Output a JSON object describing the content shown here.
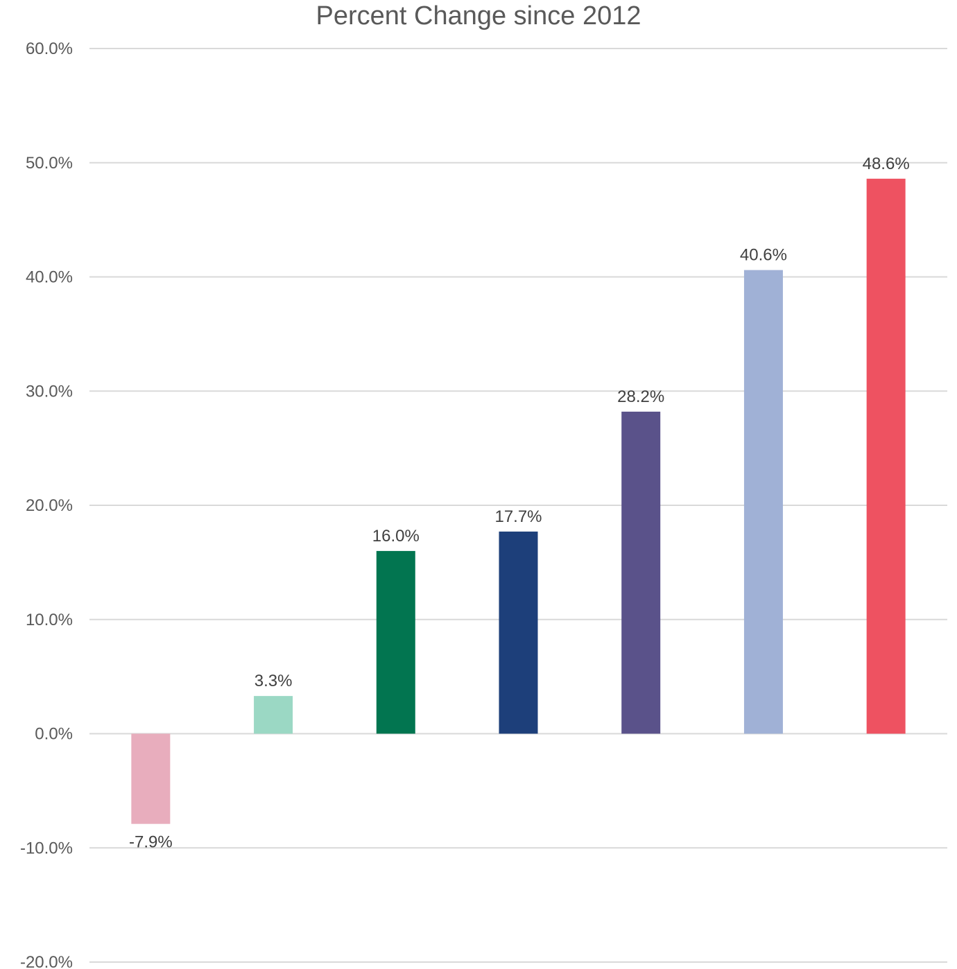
{
  "chart_data": {
    "type": "bar",
    "title": "Percent Change since 2012",
    "xlabel": "",
    "ylabel": "",
    "ylim": [
      -20,
      60
    ],
    "yticks": [
      60,
      50,
      40,
      30,
      20,
      10,
      0,
      -10,
      -20
    ],
    "ytick_labels": [
      "60.0%",
      "50.0%",
      "40.0%",
      "30.0%",
      "20.0%",
      "10.0%",
      "0.0%",
      "-10.0%",
      "-20.0%"
    ],
    "grid": true,
    "legend": "none",
    "values": [
      -7.9,
      3.3,
      16.0,
      17.7,
      28.2,
      40.6,
      48.6
    ],
    "data_labels": [
      "-7.9%",
      "3.3%",
      "16.0%",
      "17.7%",
      "28.2%",
      "40.6%",
      "48.6%"
    ],
    "colors": [
      "#e8adbd",
      "#9bd8c4",
      "#027550",
      "#1d3f7a",
      "#5a528a",
      "#a0b1d6",
      "#ee5261"
    ]
  }
}
